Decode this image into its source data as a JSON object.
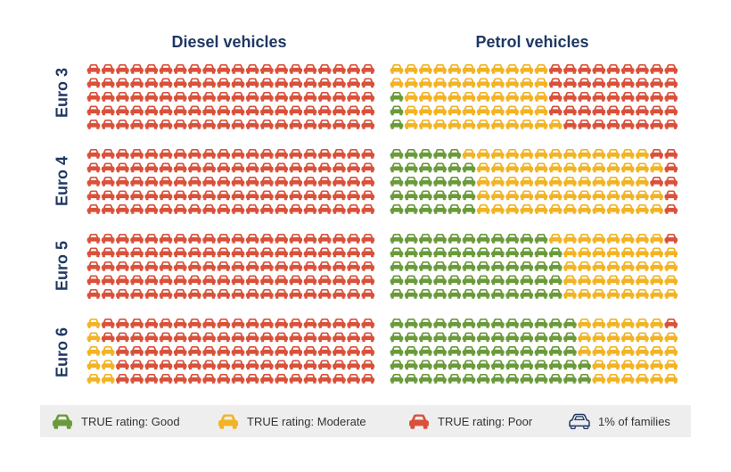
{
  "chart_data": {
    "type": "waffle",
    "unit_note": "1% of families",
    "columns": [
      "Diesel vehicles",
      "Petrol vehicles"
    ],
    "rows": [
      "Euro 3",
      "Euro 4",
      "Euro 5",
      "Euro 6"
    ],
    "rating_colors": {
      "Good": "#6a9a3a",
      "Moderate": "#f2b324",
      "Poor": "#d9513a",
      "Outline": "#1f3864"
    },
    "legend": [
      {
        "key": "Good",
        "label": "TRUE rating: Good",
        "icon": "car-good-icon"
      },
      {
        "key": "Moderate",
        "label": "TRUE rating: Moderate",
        "icon": "car-moderate-icon"
      },
      {
        "key": "Poor",
        "label": "TRUE rating: Poor",
        "icon": "car-poor-icon"
      },
      {
        "key": "Outline",
        "label": "1% of families",
        "icon": "car-outline-icon"
      }
    ],
    "grid": {
      "rows_per_block": 5,
      "cars_per_row": 20
    },
    "blocks": [
      {
        "fuel": "Diesel vehicles",
        "euro": "Euro 3",
        "good": [
          0,
          0,
          0,
          0,
          0
        ],
        "moderate": [
          0,
          0,
          0,
          0,
          0
        ]
      },
      {
        "fuel": "Petrol vehicles",
        "euro": "Euro 3",
        "good": [
          0,
          0,
          1,
          1,
          1
        ],
        "moderate": [
          11,
          11,
          10,
          10,
          11
        ]
      },
      {
        "fuel": "Diesel vehicles",
        "euro": "Euro 4",
        "good": [
          0,
          0,
          0,
          0,
          0
        ],
        "moderate": [
          0,
          0,
          0,
          0,
          0
        ]
      },
      {
        "fuel": "Petrol vehicles",
        "euro": "Euro 4",
        "good": [
          5,
          6,
          6,
          6,
          6
        ],
        "moderate": [
          13,
          13,
          12,
          13,
          13
        ]
      },
      {
        "fuel": "Diesel vehicles",
        "euro": "Euro 5",
        "good": [
          0,
          0,
          0,
          0,
          0
        ],
        "moderate": [
          0,
          0,
          0,
          0,
          0
        ]
      },
      {
        "fuel": "Petrol vehicles",
        "euro": "Euro 5",
        "good": [
          11,
          12,
          12,
          12,
          12
        ],
        "moderate": [
          8,
          8,
          8,
          8,
          8
        ]
      },
      {
        "fuel": "Diesel vehicles",
        "euro": "Euro 6",
        "good": [
          0,
          0,
          0,
          0,
          0
        ],
        "moderate": [
          1,
          1,
          2,
          2,
          2
        ]
      },
      {
        "fuel": "Petrol vehicles",
        "euro": "Euro 6",
        "good": [
          13,
          13,
          13,
          14,
          14
        ],
        "moderate": [
          6,
          7,
          7,
          6,
          6
        ]
      }
    ]
  }
}
